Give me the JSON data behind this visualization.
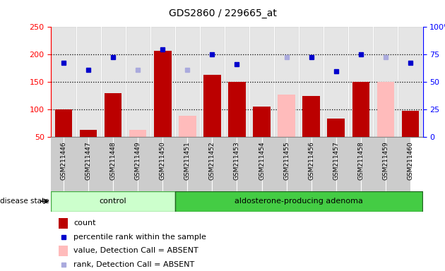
{
  "title": "GDS2860 / 229665_at",
  "samples": [
    "GSM211446",
    "GSM211447",
    "GSM211448",
    "GSM211449",
    "GSM211450",
    "GSM211451",
    "GSM211452",
    "GSM211453",
    "GSM211454",
    "GSM211455",
    "GSM211456",
    "GSM211457",
    "GSM211458",
    "GSM211459",
    "GSM211460"
  ],
  "count_values": [
    100,
    63,
    130,
    null,
    207,
    null,
    163,
    150,
    105,
    null,
    125,
    83,
    150,
    null,
    98
  ],
  "absent_value_values": [
    null,
    null,
    null,
    63,
    null,
    88,
    null,
    null,
    null,
    127,
    null,
    null,
    null,
    150,
    null
  ],
  "percentile_rank": [
    185,
    172,
    195,
    null,
    210,
    null,
    200,
    182,
    null,
    null,
    195,
    170,
    200,
    null,
    185
  ],
  "absent_rank_values": [
    null,
    null,
    null,
    172,
    null,
    172,
    null,
    null,
    null,
    195,
    null,
    null,
    null,
    195,
    null
  ],
  "n_control": 5,
  "n_adenoma": 10,
  "ylim_left": [
    50,
    250
  ],
  "bar_color_present": "#bb0000",
  "bar_color_absent_value": "#ffbbbb",
  "dot_color_present": "#0000cc",
  "dot_color_absent_rank": "#aaaadd",
  "control_color_light": "#ccffcc",
  "control_color_dark": "#66dd66",
  "adenoma_color": "#44cc44",
  "label_fontsize": 7,
  "title_fontsize": 10,
  "col_bg_color": "#cccccc"
}
